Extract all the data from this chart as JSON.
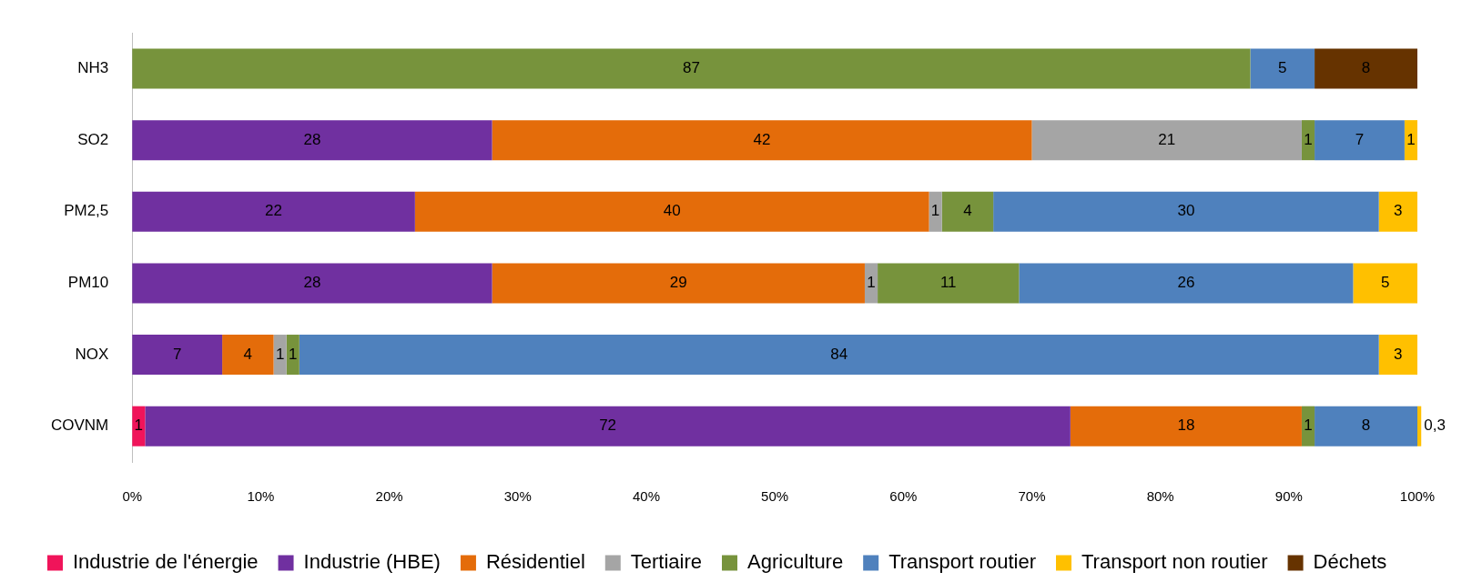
{
  "chart_data": {
    "type": "bar",
    "orientation": "horizontal",
    "stacked": true,
    "grid": false,
    "legend": "bottom",
    "categories": [
      "NH3",
      "SO2",
      "PM2,5",
      "PM10",
      "NOX",
      "COVNM"
    ],
    "xlim": [
      0,
      100
    ],
    "xticks": [
      {
        "value": 0,
        "label": "0%"
      },
      {
        "value": 10,
        "label": "10%"
      },
      {
        "value": 20,
        "label": "20%"
      },
      {
        "value": 30,
        "label": "30%"
      },
      {
        "value": 40,
        "label": "40%"
      },
      {
        "value": 50,
        "label": "50%"
      },
      {
        "value": 60,
        "label": "60%"
      },
      {
        "value": 70,
        "label": "70%"
      },
      {
        "value": 80,
        "label": "80%"
      },
      {
        "value": 90,
        "label": "90%"
      },
      {
        "value": 100,
        "label": "100%"
      }
    ],
    "series": [
      {
        "name": "Industrie de l'énergie",
        "color": "#f0145a",
        "values": [
          null,
          null,
          null,
          null,
          null,
          1
        ],
        "value_labels": [
          null,
          null,
          null,
          null,
          null,
          "1"
        ]
      },
      {
        "name": "Industrie (HBE)",
        "color": "#7030a0",
        "values": [
          null,
          28,
          22,
          28,
          7,
          72
        ],
        "value_labels": [
          null,
          "28",
          "22",
          "28",
          "7",
          "72"
        ]
      },
      {
        "name": "Résidentiel",
        "color": "#e46c0a",
        "values": [
          null,
          42,
          40,
          29,
          4,
          18
        ],
        "value_labels": [
          null,
          "42",
          "40",
          "29",
          "4",
          "18"
        ]
      },
      {
        "name": "Tertiaire",
        "color": "#a5a5a5",
        "values": [
          null,
          21,
          1,
          1,
          1,
          null
        ],
        "value_labels": [
          null,
          "21",
          "1",
          "1",
          "1",
          null
        ]
      },
      {
        "name": "Agriculture",
        "color": "#77933c",
        "values": [
          87,
          1,
          4,
          11,
          1,
          1
        ],
        "value_labels": [
          "87",
          "1",
          "4",
          "11",
          "1",
          "1"
        ]
      },
      {
        "name": "Transport routier",
        "color": "#4f81bd",
        "values": [
          5,
          7,
          30,
          26,
          84,
          8
        ],
        "value_labels": [
          "5",
          "7",
          "30",
          "26",
          "84",
          "8"
        ]
      },
      {
        "name": "Transport non routier",
        "color": "#ffc000",
        "values": [
          null,
          1,
          3,
          5,
          3,
          0.3
        ],
        "value_labels": [
          null,
          "1",
          "3",
          "5",
          "3",
          "0,3"
        ]
      },
      {
        "name": "Déchets",
        "color": "#663300",
        "values": [
          8,
          null,
          null,
          null,
          null,
          null
        ],
        "value_labels": [
          "8",
          null,
          null,
          null,
          null,
          null
        ]
      }
    ]
  }
}
